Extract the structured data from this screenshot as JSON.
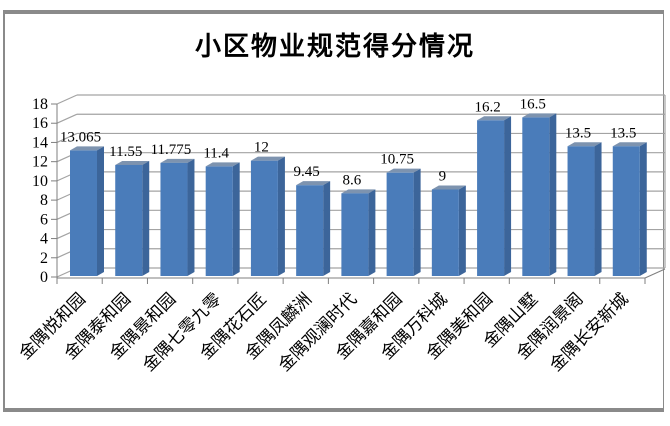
{
  "frame": {
    "border_color": "#8a8a8a",
    "background": "#ffffff"
  },
  "chart_data": {
    "type": "bar",
    "style": "3d-column",
    "title": "小区物业规范得分情况",
    "xlabel": "",
    "ylabel": "",
    "categories": [
      "金隅悦和园",
      "金隅泰和园",
      "金隅景和园",
      "金隅七零九零",
      "金隅花石匠",
      "金隅凤麟洲",
      "金隅观澜时代",
      "金隅嘉和园",
      "金隅万科城",
      "金隅美和园",
      "金隅山墅",
      "金隅润景阁",
      "金隅长安新城"
    ],
    "values": [
      13.065,
      11.55,
      11.775,
      11.4,
      12,
      9.45,
      8.6,
      10.75,
      9,
      16.2,
      16.5,
      13.5,
      13.5
    ],
    "value_labels": [
      "13.065",
      "11.55",
      "11.775",
      "11.4",
      "12",
      "9.45",
      "8.6",
      "10.75",
      "9",
      "16.2",
      "16.5",
      "13.5",
      "13.5"
    ],
    "ylim": [
      0,
      18
    ],
    "yticks": [
      0,
      2,
      4,
      6,
      8,
      10,
      12,
      14,
      16,
      18
    ],
    "grid": true,
    "legend_position": "none",
    "colors": {
      "bar_front": "#4a7cba",
      "bar_side": "#3c659a",
      "bar_top": "#7d93af",
      "grid_line": "#a3a3a3",
      "axis_line": "#7f7f7f",
      "text": "#000000"
    }
  }
}
